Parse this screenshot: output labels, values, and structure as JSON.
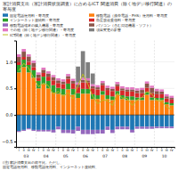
{
  "chart_data": {
    "type": "bar",
    "stacked": true,
    "grid": true,
    "title": "家計消費支出（家計消費状況調査）に占めるICT 関連消費（除く地デジ移行関連）の寄与度",
    "annotations": [
      "(注) 家計消費支出の前年比。ただし、",
      "固定電話使用料、移動電話使用料、インターネット接続料、"
    ],
    "category_groups": [
      "03",
      "04",
      "05",
      "06",
      "07",
      "08",
      "09",
      "10"
    ],
    "categories": [
      "I",
      "II",
      "III",
      "IV",
      "I",
      "II",
      "III",
      "IV",
      "I",
      "II",
      "III",
      "IV",
      "I",
      "II",
      "III",
      "IV",
      "I",
      "II",
      "III",
      "IV",
      "I",
      "II",
      "III",
      "IV",
      "I",
      "II",
      "III",
      "IV",
      "I",
      "II",
      "III",
      "IV"
    ],
    "ylim": [
      -0.6,
      1.4
    ],
    "yticks": [
      {
        "value": -0.5,
        "label": "−0.5"
      },
      {
        "value": 0.0,
        "label": "0.0"
      },
      0.5,
      {
        "value": 1.0,
        "label": "1.0"
      }
    ],
    "series": [
      {
        "name": "固定電話使用料・寄与度",
        "values": [
          -0.3,
          -0.28,
          -0.25,
          -0.28,
          -0.28,
          -0.28,
          -0.28,
          -0.28,
          -0.22,
          -0.28,
          -0.28,
          -0.28,
          -0.22,
          -0.28,
          -0.28,
          -0.28,
          -0.28,
          -0.28,
          -0.22,
          -0.28,
          -0.22,
          -0.22,
          -0.22,
          -0.28,
          -0.22,
          -0.22,
          -0.22,
          -0.22,
          -0.22,
          -0.22,
          -0.22,
          -0.22
        ]
      },
      {
        "name": "移動電話（携帯電話・PHS）使用料・寄与度",
        "values": [
          0.8,
          0.9,
          0.8,
          0.7,
          0.5,
          0.58,
          0.5,
          0.42,
          0.4,
          0.38,
          0.48,
          0.38,
          0.32,
          0.4,
          0.4,
          0.3,
          0.3,
          0.38,
          0.3,
          0.28,
          0.38,
          0.3,
          0.28,
          0.28,
          0.28,
          0.28,
          0.38,
          0.28,
          0.28,
          0.28,
          0.2,
          0.18
        ]
      },
      {
        "name": "インターネット接続料・寄与度",
        "values": [
          0.14,
          0.14,
          0.14,
          0.14,
          0.14,
          0.14,
          0.14,
          0.14,
          0.11,
          0.11,
          0.11,
          0.11,
          0.09,
          0.09,
          0.09,
          0.09,
          0.07,
          0.07,
          0.07,
          0.07,
          0.07,
          0.07,
          0.07,
          0.07,
          0.05,
          0.05,
          0.05,
          0.05,
          0.04,
          0.04,
          0.04,
          0.04
        ]
      },
      {
        "name": "衛星放送受信料・寄与度",
        "values": [
          0.05,
          0.05,
          0.06,
          0.06,
          0.06,
          0.07,
          0.08,
          0.09,
          0.09,
          0.09,
          0.09,
          0.1,
          0.11,
          0.12,
          0.12,
          0.11,
          0.11,
          0.11,
          0.1,
          0.1,
          0.09,
          0.09,
          0.09,
          0.09,
          0.08,
          0.08,
          0.08,
          0.08,
          0.07,
          0.07,
          0.07,
          0.07
        ]
      },
      {
        "name": "移動電話端末の購入機器・寄与度",
        "values": [
          -0.02,
          -0.02,
          -0.02,
          -0.02,
          -0.03,
          -0.03,
          -0.03,
          -0.05,
          -0.05,
          -0.06,
          -0.06,
          -0.07,
          -0.08,
          -0.08,
          -0.08,
          -0.08,
          -0.07,
          -0.07,
          -0.06,
          -0.06,
          -0.05,
          -0.05,
          -0.05,
          -0.05,
          -0.04,
          -0.04,
          -0.04,
          -0.04,
          -0.03,
          -0.03,
          -0.03,
          -0.03
        ]
      },
      {
        "name": "パソコン（含む周辺機器・ソフト）",
        "values": [
          0.1,
          0.1,
          0.1,
          0.08,
          0.06,
          0.06,
          0.06,
          0.06,
          0.05,
          0.05,
          0.05,
          0.05,
          0.05,
          0.05,
          0.04,
          0.04,
          0.04,
          0.04,
          0.04,
          0.04,
          0.04,
          0.04,
          0.04,
          0.04,
          0.05,
          0.06,
          0.08,
          0.1,
          0.06,
          0.05,
          0.04,
          0.03
        ]
      },
      {
        "name": "その他（除く地デジ移行関連）・寄与度",
        "values": [
          0.05,
          0.05,
          0.04,
          0.04,
          0.04,
          0.04,
          0.04,
          0.04,
          0.04,
          0.04,
          0.04,
          0.04,
          0.04,
          0.04,
          0.04,
          0.04,
          0.04,
          0.04,
          0.04,
          0.04,
          0.04,
          0.04,
          0.04,
          0.04,
          0.04,
          0.04,
          0.04,
          0.04,
          0.04,
          0.04,
          0.04,
          0.04
        ]
      },
      {
        "name": "項目変更の影響",
        "values": [
          0.0,
          0.0,
          0.0,
          0.0,
          0.0,
          0.0,
          0.0,
          0.0,
          0.0,
          0.0,
          0.0,
          0.0,
          0.3,
          0.5,
          0.3,
          0.2,
          0.0,
          0.0,
          0.0,
          0.0,
          0.0,
          0.0,
          0.0,
          0.0,
          0.0,
          0.0,
          0.0,
          0.0,
          0.0,
          0.0,
          0.0,
          0.0
        ]
      },
      {
        "name": "ICT関連（除く地デジ移行関連）・寄与度",
        "type": "line",
        "values": [
          0.83,
          0.97,
          0.88,
          0.7,
          0.53,
          0.6,
          0.55,
          0.39,
          0.44,
          0.35,
          0.42,
          0.3,
          0.55,
          0.77,
          0.58,
          0.35,
          0.21,
          0.28,
          0.27,
          0.18,
          0.41,
          0.32,
          0.31,
          0.18,
          0.28,
          0.33,
          0.44,
          0.39,
          0.27,
          0.26,
          0.15,
          0.1
        ]
      }
    ]
  }
}
